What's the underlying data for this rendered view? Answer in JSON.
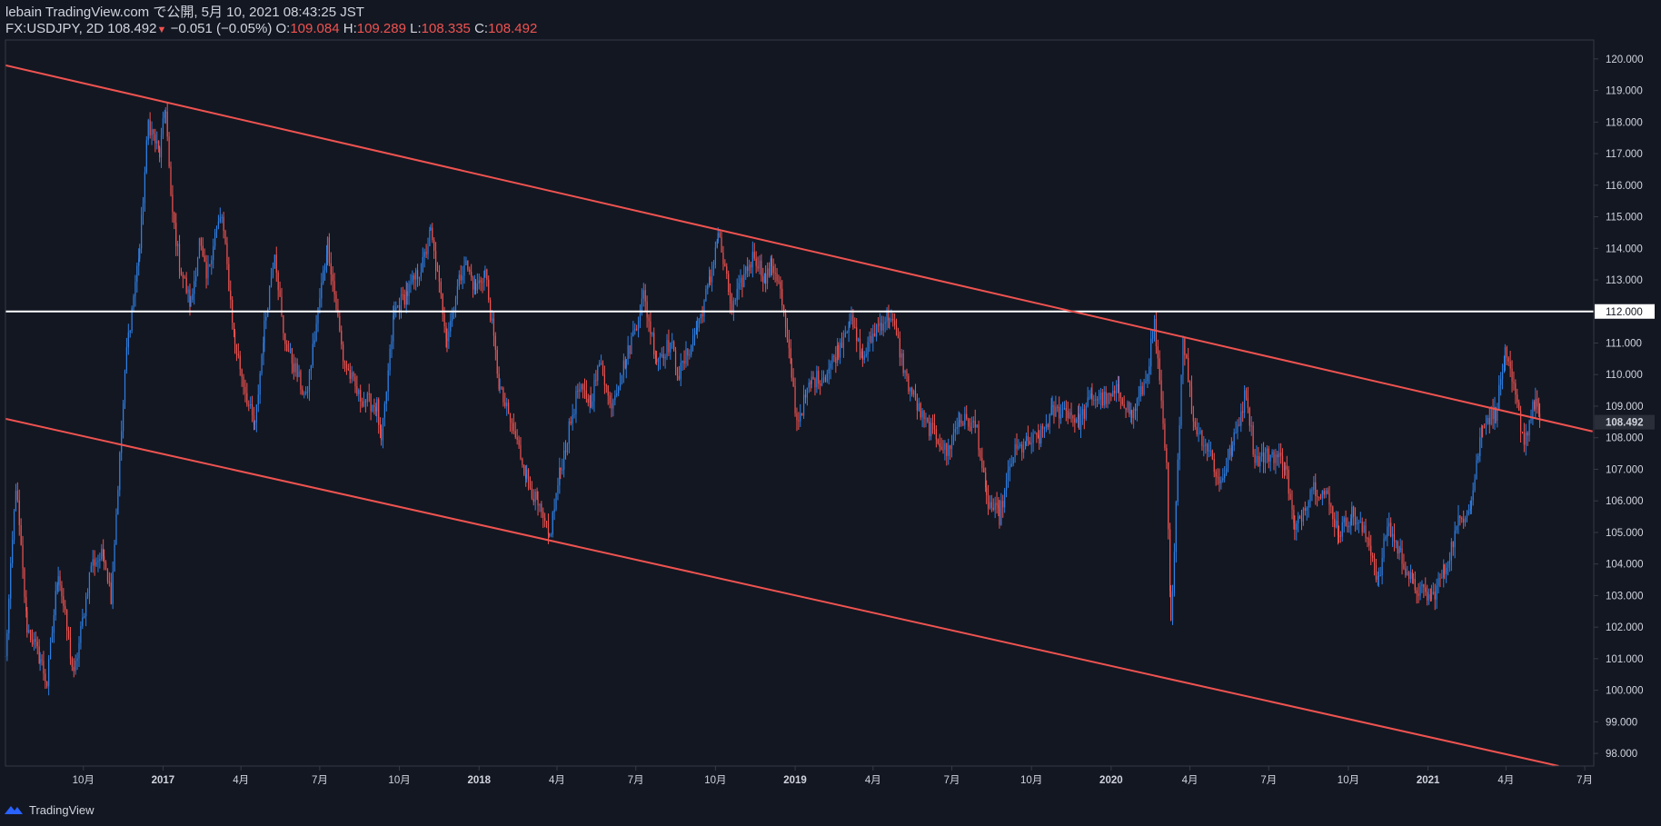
{
  "header": {
    "publish_line": "lebain TradingView.com で公開, 5月 10, 2021 08:43:25 JST",
    "symbol": "FX:USDJPY, 2D",
    "last": "108.492",
    "change": "−0.051 (−0.05%)",
    "o_label": "O:",
    "o_value": "109.084",
    "h_label": "H:",
    "h_value": "109.289",
    "l_label": "L:",
    "l_value": "108.335",
    "c_label": "C:",
    "c_value": "108.492"
  },
  "footer": {
    "brand": "TradingView",
    "logo_icon": "tradingview-logo-icon"
  },
  "colors": {
    "background": "#131722",
    "up": "#2f7fe3",
    "down": "#ef5350",
    "trendline": "#ef5350",
    "hline": "#ffffff",
    "text": "#d1d4dc"
  },
  "chart_data": {
    "type": "candlestick",
    "symbol": "FX:USDJPY",
    "interval": "2D",
    "ylim": [
      97.6,
      120.6
    ],
    "y_ticks": [
      "98.000",
      "99.000",
      "100.000",
      "101.000",
      "102.000",
      "103.000",
      "104.000",
      "105.000",
      "106.000",
      "107.000",
      "108.000",
      "109.000",
      "110.000",
      "111.000",
      "112.000",
      "113.000",
      "114.000",
      "115.000",
      "116.000",
      "117.000",
      "118.000",
      "119.000",
      "120.000"
    ],
    "x_ticks": [
      {
        "label": "10月",
        "date": "2016-10-01",
        "bold": false
      },
      {
        "label": "2017",
        "date": "2017-01-01",
        "bold": true
      },
      {
        "label": "4月",
        "date": "2017-04-01",
        "bold": false
      },
      {
        "label": "7月",
        "date": "2017-07-01",
        "bold": false
      },
      {
        "label": "10月",
        "date": "2017-10-01",
        "bold": false
      },
      {
        "label": "2018",
        "date": "2018-01-01",
        "bold": true
      },
      {
        "label": "4月",
        "date": "2018-04-01",
        "bold": false
      },
      {
        "label": "7月",
        "date": "2018-07-01",
        "bold": false
      },
      {
        "label": "10月",
        "date": "2018-10-01",
        "bold": false
      },
      {
        "label": "2019",
        "date": "2019-01-01",
        "bold": true
      },
      {
        "label": "4月",
        "date": "2019-04-01",
        "bold": false
      },
      {
        "label": "7月",
        "date": "2019-07-01",
        "bold": false
      },
      {
        "label": "10月",
        "date": "2019-10-01",
        "bold": false
      },
      {
        "label": "2020",
        "date": "2020-01-01",
        "bold": true
      },
      {
        "label": "4月",
        "date": "2020-04-01",
        "bold": false
      },
      {
        "label": "7月",
        "date": "2020-07-01",
        "bold": false
      },
      {
        "label": "10月",
        "date": "2020-10-01",
        "bold": false
      },
      {
        "label": "2021",
        "date": "2021-01-01",
        "bold": true
      },
      {
        "label": "4月",
        "date": "2021-04-01",
        "bold": false
      },
      {
        "label": "7月",
        "date": "2021-07-01",
        "bold": false
      }
    ],
    "x_range": [
      "2016-07-03",
      "2021-07-03"
    ],
    "last_price_label": "108.492",
    "horizontal_line": {
      "value": 112.0,
      "label": "112.000"
    },
    "trendlines": [
      {
        "name": "upper-channel",
        "from": {
          "date": "2016-07-03",
          "value": 119.8
        },
        "to": {
          "date": "2021-07-10",
          "value": 108.2
        }
      },
      {
        "name": "lower-channel",
        "from": {
          "date": "2016-07-03",
          "value": 108.6
        },
        "to": {
          "date": "2021-06-01",
          "value": 97.6
        }
      }
    ],
    "price_path": [
      [
        "2016-07-03",
        101.0
      ],
      [
        "2016-07-15",
        106.5
      ],
      [
        "2016-07-28",
        102.0
      ],
      [
        "2016-08-12",
        101.0
      ],
      [
        "2016-08-20",
        100.2
      ],
      [
        "2016-09-02",
        103.8
      ],
      [
        "2016-09-20",
        100.4
      ],
      [
        "2016-10-10",
        104.0
      ],
      [
        "2016-10-25",
        104.3
      ],
      [
        "2016-11-02",
        103.0
      ],
      [
        "2016-11-10",
        106.5
      ],
      [
        "2016-11-20",
        110.8
      ],
      [
        "2016-12-05",
        114.0
      ],
      [
        "2016-12-15",
        118.0
      ],
      [
        "2016-12-28",
        117.0
      ],
      [
        "2017-01-04",
        118.5
      ],
      [
        "2017-01-10",
        115.5
      ],
      [
        "2017-01-20",
        113.5
      ],
      [
        "2017-02-02",
        112.2
      ],
      [
        "2017-02-12",
        114.2
      ],
      [
        "2017-02-20",
        113.0
      ],
      [
        "2017-03-02",
        114.5
      ],
      [
        "2017-03-10",
        115.0
      ],
      [
        "2017-03-25",
        111.0
      ],
      [
        "2017-04-10",
        109.0
      ],
      [
        "2017-04-17",
        108.3
      ],
      [
        "2017-04-28",
        111.5
      ],
      [
        "2017-05-10",
        114.0
      ],
      [
        "2017-05-20",
        111.2
      ],
      [
        "2017-06-05",
        110.0
      ],
      [
        "2017-06-15",
        109.2
      ],
      [
        "2017-07-10",
        114.2
      ],
      [
        "2017-07-28",
        110.5
      ],
      [
        "2017-08-15",
        109.3
      ],
      [
        "2017-09-05",
        109.0
      ],
      [
        "2017-09-10",
        107.8
      ],
      [
        "2017-09-25",
        112.0
      ],
      [
        "2017-10-10",
        112.6
      ],
      [
        "2017-10-28",
        113.5
      ],
      [
        "2017-11-06",
        114.5
      ],
      [
        "2017-11-25",
        111.2
      ],
      [
        "2017-12-05",
        112.5
      ],
      [
        "2017-12-15",
        113.6
      ],
      [
        "2017-12-28",
        112.7
      ],
      [
        "2018-01-08",
        113.3
      ],
      [
        "2018-01-25",
        109.5
      ],
      [
        "2018-02-10",
        108.2
      ],
      [
        "2018-02-25",
        106.8
      ],
      [
        "2018-03-10",
        105.8
      ],
      [
        "2018-03-23",
        104.8
      ],
      [
        "2018-04-05",
        107.0
      ],
      [
        "2018-04-25",
        109.5
      ],
      [
        "2018-05-10",
        109.2
      ],
      [
        "2018-05-22",
        110.5
      ],
      [
        "2018-06-01",
        109.0
      ],
      [
        "2018-06-20",
        110.5
      ],
      [
        "2018-07-10",
        112.5
      ],
      [
        "2018-07-25",
        110.5
      ],
      [
        "2018-08-10",
        111.0
      ],
      [
        "2018-08-20",
        110.0
      ],
      [
        "2018-09-10",
        111.5
      ],
      [
        "2018-09-25",
        113.0
      ],
      [
        "2018-10-04",
        114.5
      ],
      [
        "2018-10-20",
        112.0
      ],
      [
        "2018-11-05",
        113.3
      ],
      [
        "2018-11-15",
        113.8
      ],
      [
        "2018-11-28",
        113.0
      ],
      [
        "2018-12-05",
        113.5
      ],
      [
        "2018-12-13",
        113.0
      ],
      [
        "2018-12-28",
        110.0
      ],
      [
        "2019-01-03",
        108.5
      ],
      [
        "2019-01-20",
        109.8
      ],
      [
        "2019-02-05",
        110.0
      ],
      [
        "2019-02-20",
        110.8
      ],
      [
        "2019-03-05",
        111.8
      ],
      [
        "2019-03-20",
        110.5
      ],
      [
        "2019-04-05",
        111.5
      ],
      [
        "2019-04-20",
        111.9
      ],
      [
        "2019-04-28",
        111.2
      ],
      [
        "2019-05-10",
        109.8
      ],
      [
        "2019-05-30",
        108.5
      ],
      [
        "2019-06-15",
        108.0
      ],
      [
        "2019-06-25",
        107.5
      ],
      [
        "2019-07-10",
        108.6
      ],
      [
        "2019-07-30",
        108.3
      ],
      [
        "2019-08-10",
        106.0
      ],
      [
        "2019-08-25",
        105.5
      ],
      [
        "2019-09-10",
        107.5
      ],
      [
        "2019-09-25",
        107.8
      ],
      [
        "2019-10-10",
        108.0
      ],
      [
        "2019-10-25",
        108.8
      ],
      [
        "2019-11-10",
        108.9
      ],
      [
        "2019-11-25",
        108.5
      ],
      [
        "2019-12-10",
        109.3
      ],
      [
        "2019-12-28",
        109.2
      ],
      [
        "2020-01-10",
        109.5
      ],
      [
        "2020-01-25",
        108.7
      ],
      [
        "2020-02-10",
        109.8
      ],
      [
        "2020-02-20",
        111.6
      ],
      [
        "2020-03-05",
        107.0
      ],
      [
        "2020-03-10",
        102.0
      ],
      [
        "2020-03-24",
        111.3
      ],
      [
        "2020-04-05",
        108.5
      ],
      [
        "2020-04-25",
        107.5
      ],
      [
        "2020-05-05",
        106.5
      ],
      [
        "2020-05-20",
        107.7
      ],
      [
        "2020-06-05",
        109.5
      ],
      [
        "2020-06-15",
        107.3
      ],
      [
        "2020-07-05",
        107.5
      ],
      [
        "2020-07-20",
        107.2
      ],
      [
        "2020-07-31",
        105.0
      ],
      [
        "2020-08-20",
        106.5
      ],
      [
        "2020-09-05",
        106.2
      ],
      [
        "2020-09-20",
        105.0
      ],
      [
        "2020-10-05",
        105.6
      ],
      [
        "2020-10-25",
        104.7
      ],
      [
        "2020-11-05",
        103.4
      ],
      [
        "2020-11-15",
        105.3
      ],
      [
        "2020-11-30",
        104.3
      ],
      [
        "2020-12-15",
        103.3
      ],
      [
        "2021-01-05",
        102.9
      ],
      [
        "2021-01-20",
        103.8
      ],
      [
        "2021-02-05",
        105.3
      ],
      [
        "2021-02-20",
        106.0
      ],
      [
        "2021-03-05",
        108.5
      ],
      [
        "2021-03-20",
        108.8
      ],
      [
        "2021-03-31",
        110.6
      ],
      [
        "2021-04-10",
        109.5
      ],
      [
        "2021-04-22",
        107.9
      ],
      [
        "2021-05-05",
        109.2
      ],
      [
        "2021-05-10",
        108.5
      ]
    ]
  }
}
